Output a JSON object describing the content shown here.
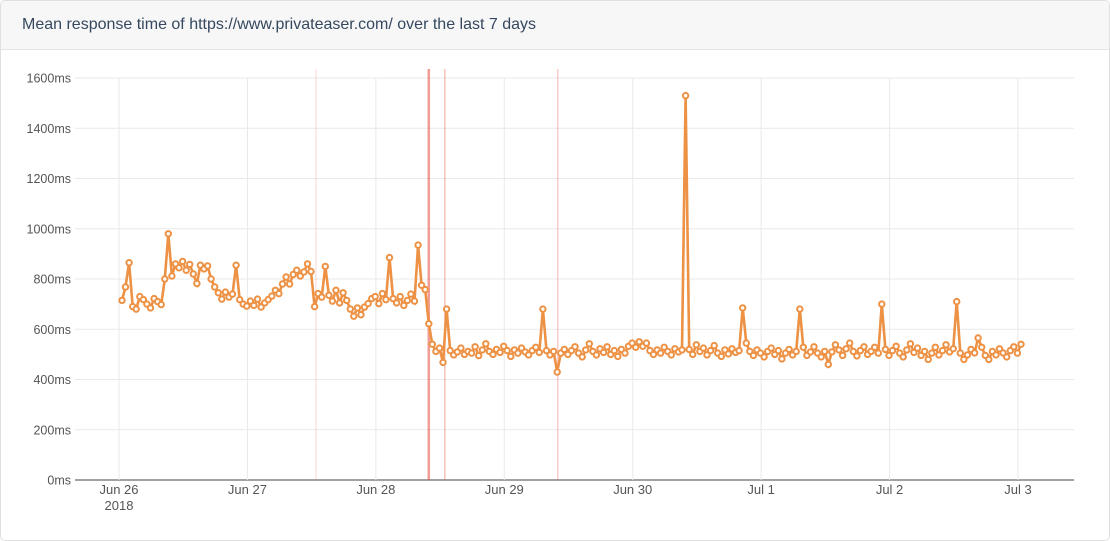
{
  "header": {
    "title": "Mean response time of https://www.privateaser.com/ over the last 7 days"
  },
  "colors": {
    "series_orange": "#ED9144",
    "event_red": "#E74C3C",
    "title_text": "#35485F",
    "axis_text": "#555555",
    "grid": "#E9E9E9",
    "axis_line": "#444444",
    "header_bg": "#F7F7F7"
  },
  "chart_data": {
    "type": "line",
    "title": "Mean response time of https://www.privateaser.com/ over the last 7 days",
    "unit": "ms",
    "x_tick_labels": [
      "Jun 26",
      "Jun 27",
      "Jun 28",
      "Jun 29",
      "Jun 30",
      "Jul 1",
      "Jul 2",
      "Jul 3"
    ],
    "x_sub_label": "2018",
    "y_ticks": [
      0,
      200,
      400,
      600,
      800,
      1000,
      1200,
      1400,
      1600
    ],
    "y_tick_suffix": "ms",
    "ylim": [
      0,
      1600
    ],
    "x_span_days": 7,
    "grid": true,
    "marker": "hollow-circle",
    "first_point_day_offset": 0.023,
    "interval_minutes": 40,
    "event_lines": [
      {
        "x_day": 1.533,
        "opacity": 0.15,
        "width": 1.5
      },
      {
        "x_day": 2.412,
        "opacity": 0.55,
        "width": 2.5
      },
      {
        "x_day": 2.537,
        "opacity": 0.35,
        "width": 1.5
      },
      {
        "x_day": 3.416,
        "opacity": 0.28,
        "width": 1.5
      }
    ],
    "values": [
      715,
      768,
      865,
      690,
      680,
      730,
      718,
      700,
      685,
      722,
      710,
      698,
      800,
      980,
      812,
      860,
      845,
      870,
      835,
      858,
      820,
      782,
      855,
      840,
      852,
      800,
      768,
      745,
      720,
      748,
      728,
      740,
      855,
      718,
      700,
      692,
      712,
      695,
      720,
      688,
      705,
      718,
      732,
      755,
      742,
      780,
      808,
      780,
      818,
      835,
      812,
      828,
      860,
      830,
      690,
      742,
      728,
      850,
      735,
      712,
      755,
      705,
      745,
      715,
      680,
      652,
      685,
      658,
      688,
      702,
      722,
      730,
      702,
      742,
      718,
      885,
      722,
      705,
      730,
      695,
      715,
      740,
      712,
      935,
      775,
      758,
      622,
      540,
      512,
      525,
      468,
      680,
      515,
      498,
      510,
      525,
      500,
      512,
      505,
      530,
      495,
      518,
      542,
      512,
      500,
      520,
      508,
      532,
      515,
      492,
      518,
      505,
      525,
      510,
      498,
      515,
      528,
      508,
      680,
      515,
      498,
      512,
      430,
      505,
      520,
      500,
      515,
      530,
      505,
      490,
      518,
      542,
      512,
      498,
      522,
      508,
      530,
      500,
      515,
      492,
      520,
      505,
      532,
      545,
      528,
      550,
      532,
      545,
      515,
      500,
      518,
      505,
      528,
      512,
      498,
      522,
      510,
      518,
      1530,
      520,
      500,
      538,
      512,
      525,
      498,
      515,
      535,
      505,
      492,
      518,
      502,
      522,
      508,
      515,
      685,
      545,
      512,
      496,
      518,
      505,
      490,
      512,
      525,
      500,
      515,
      482,
      505,
      520,
      498,
      512,
      680,
      528,
      496,
      510,
      530,
      505,
      490,
      512,
      460,
      510,
      538,
      518,
      496,
      522,
      545,
      512,
      494,
      515,
      530,
      500,
      512,
      528,
      505,
      700,
      520,
      496,
      515,
      532,
      505,
      490,
      518,
      542,
      508,
      525,
      496,
      512,
      480,
      505,
      528,
      498,
      515,
      538,
      510,
      522,
      710,
      505,
      480,
      498,
      520,
      506,
      565,
      528,
      496,
      480,
      512,
      498,
      522,
      506,
      490,
      515,
      530,
      505,
      540
    ]
  }
}
